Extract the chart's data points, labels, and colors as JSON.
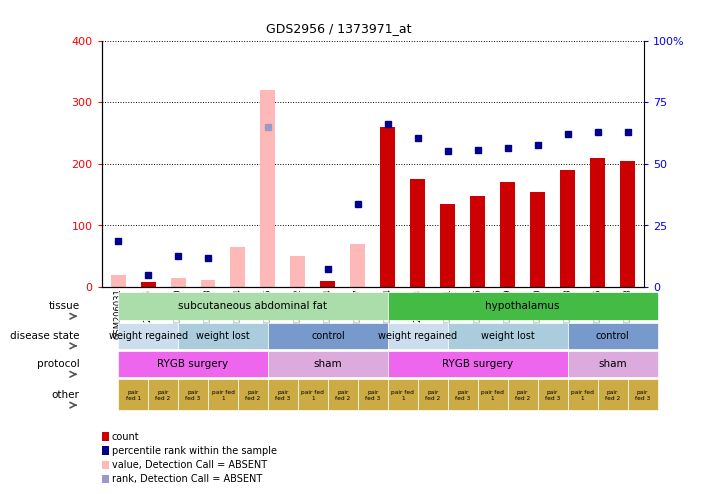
{
  "title": "GDS2956 / 1373971_at",
  "samples": [
    "GSM206031",
    "GSM206036",
    "GSM206040",
    "GSM206043",
    "GSM206044",
    "GSM206045",
    "GSM206022",
    "GSM206024",
    "GSM206027",
    "GSM206034",
    "GSM206038",
    "GSM206041",
    "GSM206046",
    "GSM206049",
    "GSM206050",
    "GSM206023",
    "GSM206025",
    "GSM206028"
  ],
  "count_values": [
    20,
    8,
    15,
    12,
    65,
    320,
    50,
    10,
    70,
    260,
    175,
    135,
    148,
    170,
    155,
    190,
    210,
    205
  ],
  "count_absent": [
    true,
    false,
    true,
    true,
    true,
    true,
    true,
    false,
    true,
    false,
    false,
    false,
    false,
    false,
    false,
    false,
    false,
    false
  ],
  "percentile_values": [
    75,
    20,
    50,
    47,
    null,
    260,
    null,
    30,
    135,
    265,
    242,
    220,
    222,
    225,
    230,
    248,
    252,
    252
  ],
  "percentile_absent": [
    false,
    false,
    false,
    false,
    null,
    true,
    null,
    false,
    false,
    false,
    false,
    false,
    false,
    false,
    false,
    false,
    false,
    false
  ],
  "ylim_left": [
    0,
    400
  ],
  "ylim_right": [
    0,
    100
  ],
  "yticks_left": [
    0,
    100,
    200,
    300,
    400
  ],
  "yticks_right": [
    0,
    25,
    50,
    75,
    100
  ],
  "yticklabels_right": [
    "0",
    "25",
    "50",
    "75",
    "100%"
  ],
  "color_count_present": "#cc0000",
  "color_count_absent": "#ffb8b8",
  "color_percentile_present": "#00008b",
  "color_percentile_absent": "#9999cc",
  "tissue_row": {
    "label": "tissue",
    "groups": [
      {
        "text": "subcutaneous abdominal fat",
        "start": 0,
        "end": 8,
        "color": "#aaddaa"
      },
      {
        "text": "hypothalamus",
        "start": 9,
        "end": 17,
        "color": "#44bb44"
      }
    ]
  },
  "disease_state_row": {
    "label": "disease state",
    "groups": [
      {
        "text": "weight regained",
        "start": 0,
        "end": 1,
        "color": "#ccddee"
      },
      {
        "text": "weight lost",
        "start": 2,
        "end": 4,
        "color": "#aaccdd"
      },
      {
        "text": "control",
        "start": 5,
        "end": 8,
        "color": "#7799cc"
      },
      {
        "text": "weight regained",
        "start": 9,
        "end": 10,
        "color": "#ccddee"
      },
      {
        "text": "weight lost",
        "start": 11,
        "end": 14,
        "color": "#aaccdd"
      },
      {
        "text": "control",
        "start": 15,
        "end": 17,
        "color": "#7799cc"
      }
    ]
  },
  "protocol_row": {
    "label": "protocol",
    "groups": [
      {
        "text": "RYGB surgery",
        "start": 0,
        "end": 4,
        "color": "#ee66ee"
      },
      {
        "text": "sham",
        "start": 5,
        "end": 8,
        "color": "#ddaadd"
      },
      {
        "text": "RYGB surgery",
        "start": 9,
        "end": 14,
        "color": "#ee66ee"
      },
      {
        "text": "sham",
        "start": 15,
        "end": 17,
        "color": "#ddaadd"
      }
    ]
  },
  "other_cells": [
    "pair\nfed 1",
    "pair\nfed 2",
    "pair\nfed 3",
    "pair fed\n1",
    "pair\nfed 2",
    "pair\nfed 3",
    "pair fed\n1",
    "pair\nfed 2",
    "pair\nfed 3",
    "pair fed\n1",
    "pair\nfed 2",
    "pair\nfed 3",
    "pair fed\n1",
    "pair\nfed 2",
    "pair\nfed 3",
    "pair fed\n1",
    "pair\nfed 2",
    "pair\nfed 3"
  ],
  "other_color": "#ccaa44",
  "legend_items": [
    {
      "label": "count",
      "color": "#cc0000"
    },
    {
      "label": "percentile rank within the sample",
      "color": "#00008b"
    },
    {
      "label": "value, Detection Call = ABSENT",
      "color": "#ffb8b8"
    },
    {
      "label": "rank, Detection Call = ABSENT",
      "color": "#9999cc"
    }
  ]
}
